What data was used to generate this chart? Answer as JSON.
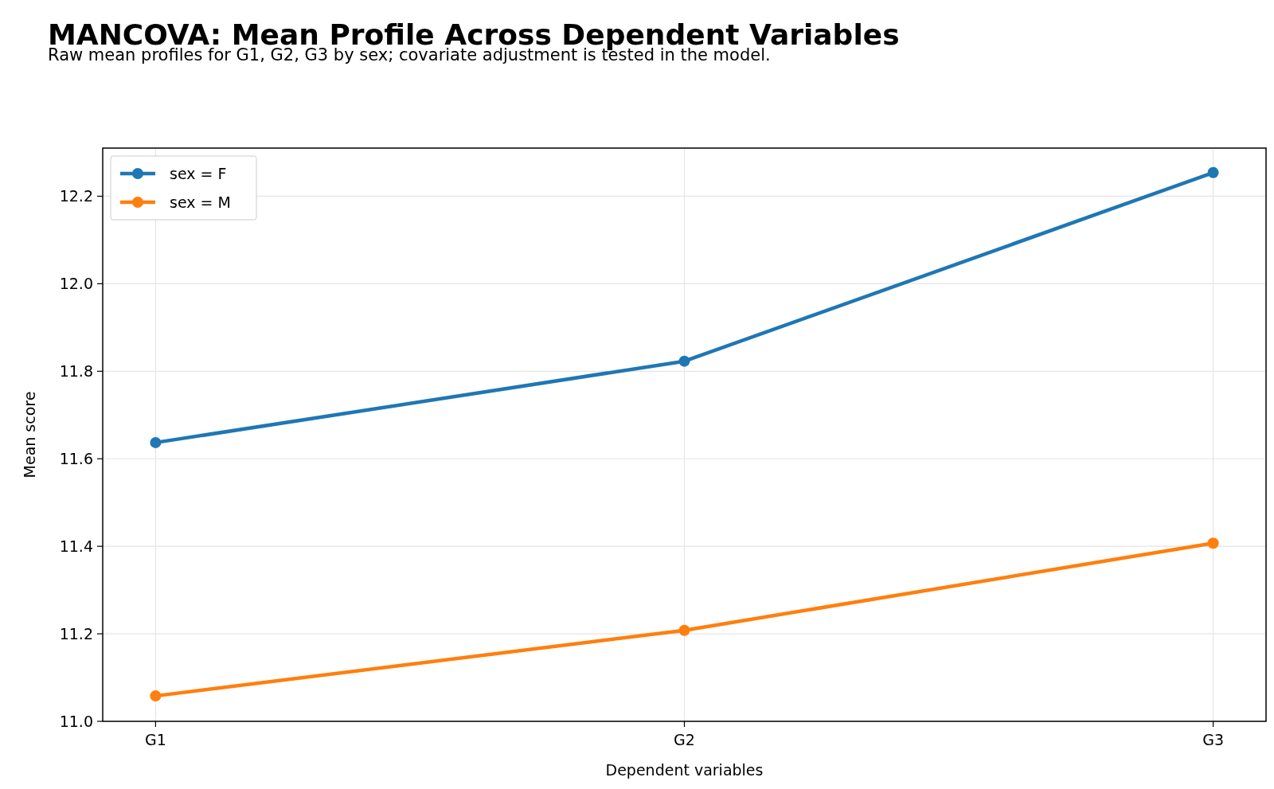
{
  "chart_data": {
    "type": "line",
    "title": "MANCOVA: Mean Profile Across Dependent Variables",
    "subtitle": "Raw mean profiles for G1, G2, G3 by sex; covariate adjustment is tested in the model.",
    "xlabel": "Dependent variables",
    "ylabel": "Mean score",
    "categories": [
      "G1",
      "G2",
      "G3"
    ],
    "series": [
      {
        "name": "sex = F",
        "color": "#1f77b4",
        "values": [
          11.637,
          11.823,
          12.254
        ]
      },
      {
        "name": "sex = M",
        "color": "#ff7f0e",
        "values": [
          11.058,
          11.208,
          11.407
        ]
      }
    ],
    "ylim": [
      11.0,
      12.31
    ],
    "yticks": [
      {
        "value": 11.0,
        "label": "11.0"
      },
      {
        "value": 11.2,
        "label": "11.2"
      },
      {
        "value": 11.4,
        "label": "11.4"
      },
      {
        "value": 11.6,
        "label": "11.6"
      },
      {
        "value": 11.8,
        "label": "11.8"
      },
      {
        "value": 12.0,
        "label": "12.0"
      },
      {
        "value": 12.2,
        "label": "12.2"
      }
    ],
    "grid": true,
    "legend": "top left",
    "marker": "circle",
    "line_style": "solid"
  }
}
